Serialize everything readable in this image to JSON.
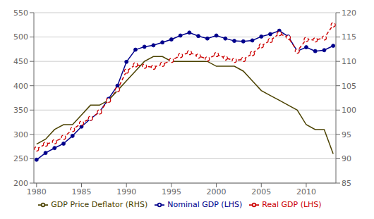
{
  "chart_data": {
    "type": "line",
    "x": [
      1980,
      1981,
      1982,
      1983,
      1984,
      1985,
      1986,
      1987,
      1988,
      1989,
      1990,
      1991,
      1992,
      1993,
      1994,
      1995,
      1996,
      1997,
      1998,
      1999,
      2000,
      2001,
      2002,
      2003,
      2004,
      2005,
      2006,
      2007,
      2008,
      2009,
      2010,
      2011,
      2012,
      2013
    ],
    "series": [
      {
        "name": "Nominal GDP (LHS)",
        "color": "#00008B",
        "marker": "circle",
        "line_style": "solid",
        "values": [
          248,
          262,
          272,
          281,
          297,
          316,
          332,
          346,
          373,
          400,
          449,
          474,
          480,
          483,
          489,
          495,
          503,
          509,
          502,
          497,
          503,
          497,
          492,
          491,
          493,
          501,
          506,
          513,
          501,
          471,
          479,
          471,
          473,
          482
        ]
      },
      {
        "name": "Real GDP (LHS)",
        "color": "#CC0000",
        "marker": "circle",
        "line_style": "dashed",
        "values": [
          270,
          280,
          285,
          294,
          310,
          323,
          333,
          346,
          370,
          392,
          430,
          443,
          440,
          438,
          444,
          452,
          462,
          468,
          461,
          455,
          464,
          457,
          452,
          454,
          466,
          482,
          493,
          507,
          499,
          471,
          495,
          494,
          498,
          525
        ]
      },
      {
        "name": "GDP Price Deflator (RHS)",
        "color": "#4B4200",
        "marker": "none",
        "line_style": "solid",
        "axis": "y2",
        "values": [
          93,
          94,
          96,
          97,
          97,
          99,
          101,
          101,
          102,
          104,
          106,
          108,
          110,
          111,
          111,
          110,
          110,
          110,
          110,
          110,
          109,
          109,
          109,
          108,
          106,
          104,
          103,
          102,
          101,
          100,
          97,
          96,
          96,
          91
        ]
      }
    ],
    "xlim": [
      1979.7,
      2013.3
    ],
    "xticks": [
      1980,
      1985,
      1990,
      1995,
      2000,
      2005,
      2010
    ],
    "ylim": [
      200,
      550
    ],
    "yticks": [
      200,
      250,
      300,
      350,
      400,
      450,
      500,
      550
    ],
    "y2lim": [
      85,
      120
    ],
    "y2ticks": [
      85,
      90,
      95,
      100,
      105,
      110,
      115,
      120
    ],
    "grid": true,
    "legend": "bottom"
  }
}
